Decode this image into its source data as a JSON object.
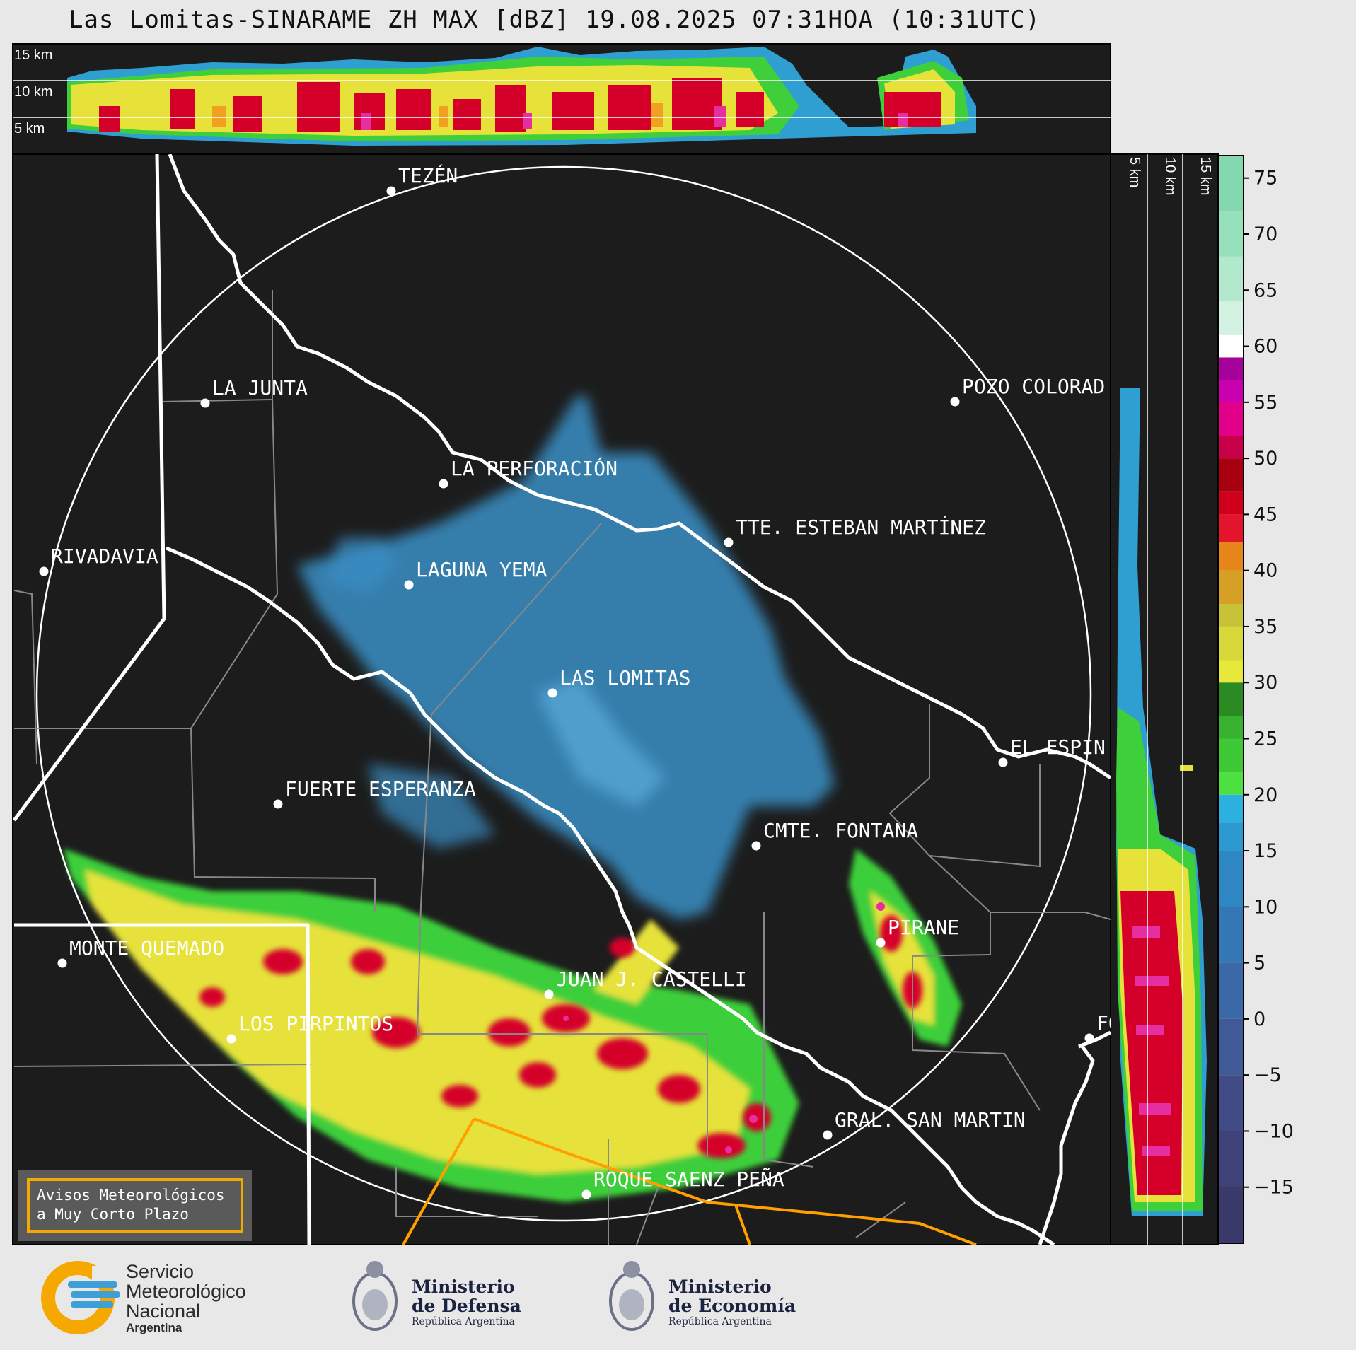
{
  "title": "Las Lomitas-SINARAME ZH MAX [dBZ] 19.08.2025 07:31HOA (10:31UTC)",
  "top_panel": {
    "altitude_labels": [
      "15 km",
      "10 km",
      "5 km"
    ]
  },
  "side_panel": {
    "altitude_labels": [
      "5 km",
      "10 km",
      "15 km"
    ]
  },
  "colorbar": {
    "ticks": [
      "75",
      "70",
      "65",
      "60",
      "55",
      "50",
      "45",
      "40",
      "35",
      "30",
      "25",
      "20",
      "15",
      "10",
      "5",
      "0",
      "−5",
      "−10",
      "−15"
    ],
    "min": -20,
    "max": 77
  },
  "cities": [
    {
      "name": "TEZÉN"
    },
    {
      "name": "LA JUNTA"
    },
    {
      "name": "POZO COLORAD"
    },
    {
      "name": "LA PERFORACIÓN"
    },
    {
      "name": "TTE. ESTEBAN MARTÍNEZ"
    },
    {
      "name": "RIVADAVIA"
    },
    {
      "name": "LAGUNA YEMA"
    },
    {
      "name": "LAS LOMITAS"
    },
    {
      "name": "EL ESPIN"
    },
    {
      "name": "FUERTE ESPERANZA"
    },
    {
      "name": "CMTE. FONTANA"
    },
    {
      "name": "PIRANE"
    },
    {
      "name": "MONTE QUEMADO"
    },
    {
      "name": "JUAN J. CASTELLI"
    },
    {
      "name": "LOS PIRPINTOS"
    },
    {
      "name": "GRAL. SAN MARTIN"
    },
    {
      "name": "ROQUE SAENZ PEÑA"
    },
    {
      "name": "FO"
    }
  ],
  "warning_box": {
    "line1": "Avisos Meteorológicos",
    "line2": "a Muy Corto Plazo"
  },
  "logos": {
    "smn": {
      "line1": "Servicio",
      "line2": "Meteorológico",
      "line3": "Nacional",
      "line4": "Argentina"
    },
    "defensa": {
      "line1": "Ministerio",
      "line2": "de Defensa",
      "line3": "República Argentina"
    },
    "economia": {
      "line1": "Ministerio",
      "line2": "de Economía",
      "line3": "República Argentina"
    }
  },
  "colors": {
    "background": "#1c1c1c",
    "range_ring": "#ffffff",
    "border": "#ffffff",
    "roads": "#ff9f00",
    "departments": "#888888",
    "smn_yellow": "#f5a800",
    "smn_blue": "#3e9fd8"
  }
}
